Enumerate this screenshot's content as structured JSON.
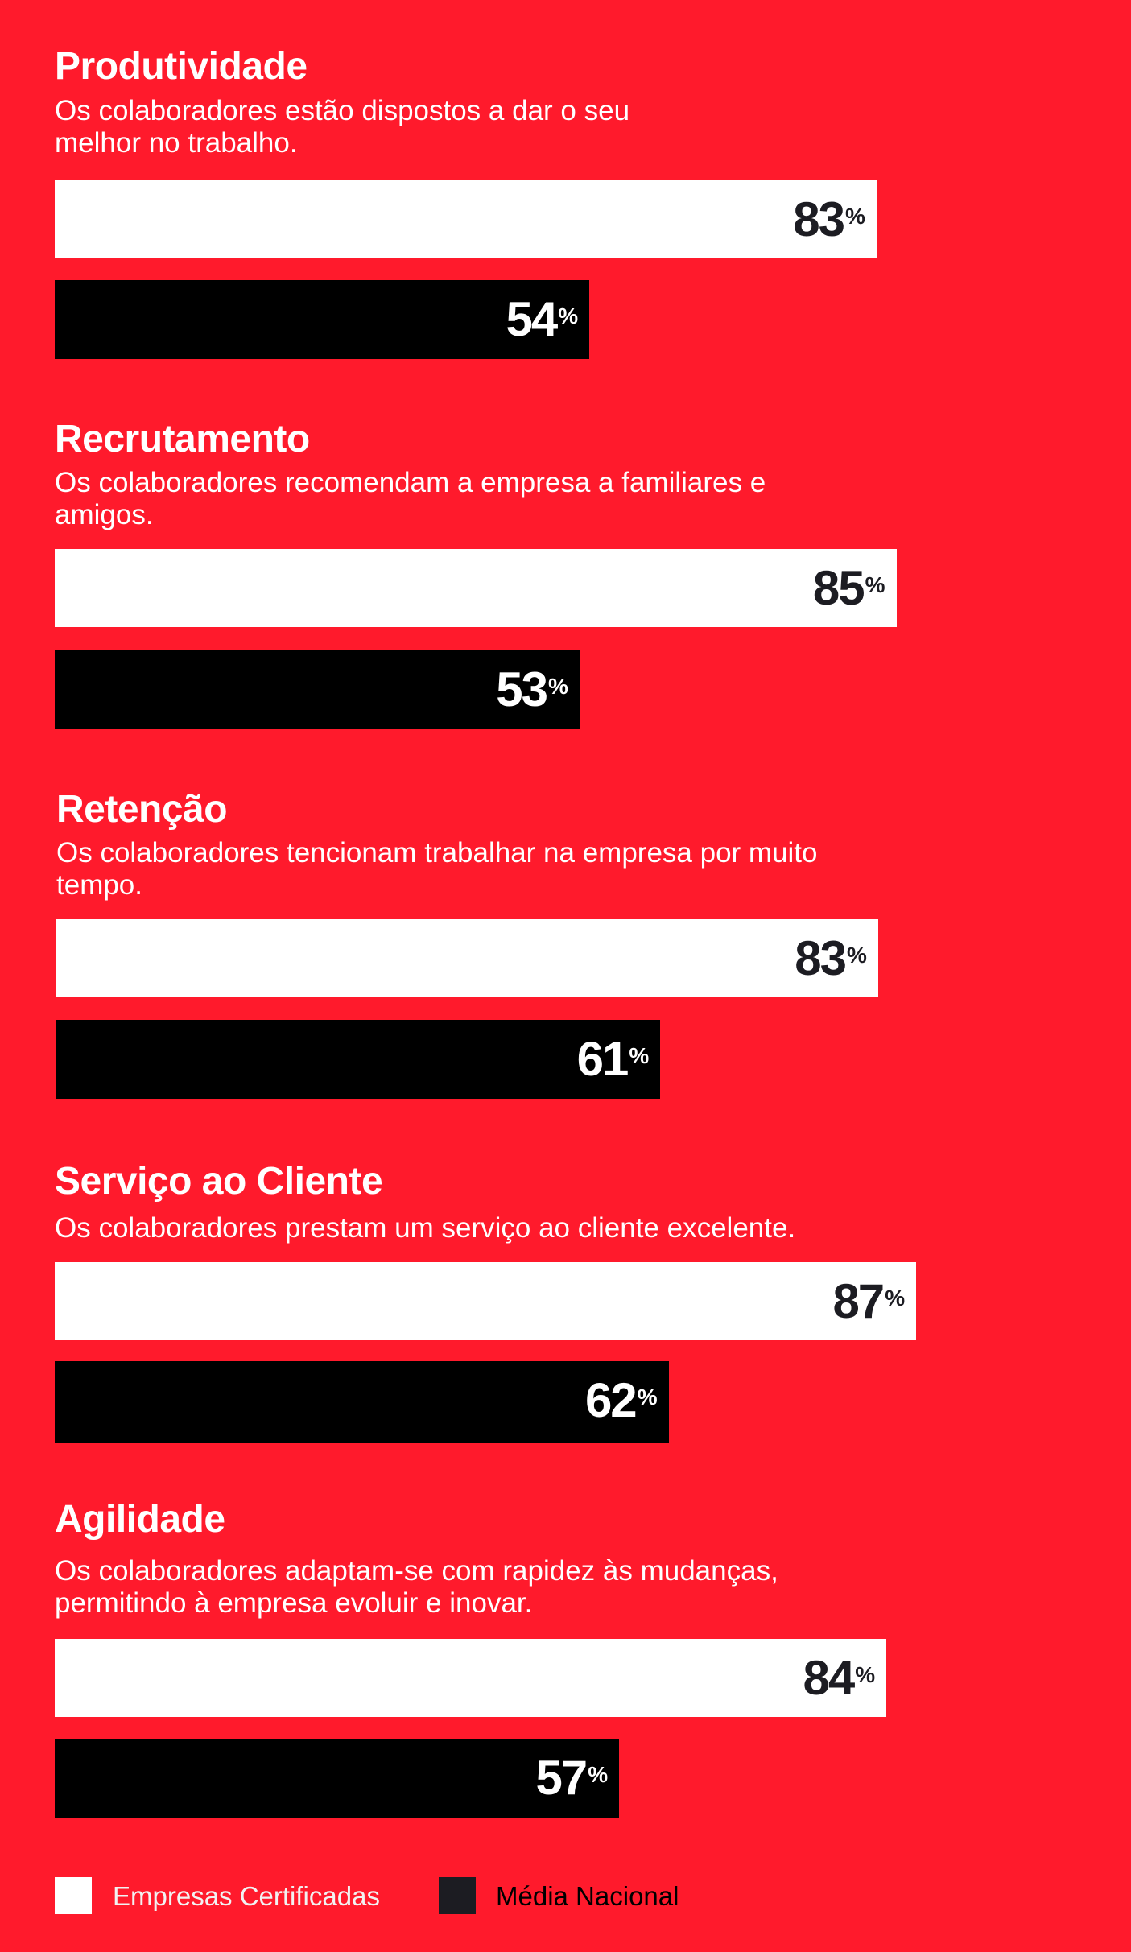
{
  "chart_data": {
    "type": "bar",
    "orientation": "horizontal",
    "unit": "%",
    "xlim": [
      0,
      100
    ],
    "grid": false,
    "legend_placement": "bottom-left",
    "colors": {
      "background": "#ff1a2c",
      "Empresas Certificadas": "#ffffff",
      "Média Nacional": "#000000"
    },
    "legend": [
      {
        "label": "Empresas Certificadas",
        "color": "#ffffff"
      },
      {
        "label": "Média Nacional",
        "color": "#1c1c22"
      }
    ],
    "categories": [
      {
        "title": "Produtividade",
        "subtitle": "Os colaboradores estão dispostos a dar o seu melhor no trabalho.",
        "certified": 83,
        "national": 54
      },
      {
        "title": "Recrutamento",
        "subtitle": "Os colaboradores recomendam a empresa a familiares e amigos.",
        "certified": 85,
        "national": 53
      },
      {
        "title": "Retenção",
        "subtitle": "Os colaboradores tencionam trabalhar na empresa por muito tempo.",
        "certified": 83,
        "national": 61
      },
      {
        "title": "Serviço ao Cliente",
        "subtitle": "Os colaboradores prestam um serviço ao cliente excelente.",
        "certified": 87,
        "national": 62
      },
      {
        "title": "Agilidade",
        "subtitle": "Os colaboradores adaptam-se com rapidez às mudanças, permitindo à empresa evoluir e inovar.",
        "certified": 84,
        "national": 57
      }
    ],
    "series": [
      {
        "name": "Empresas Certificadas",
        "values": [
          83,
          85,
          83,
          87,
          84
        ]
      },
      {
        "name": "Média Nacional",
        "values": [
          54,
          53,
          61,
          62,
          57
        ]
      }
    ]
  }
}
